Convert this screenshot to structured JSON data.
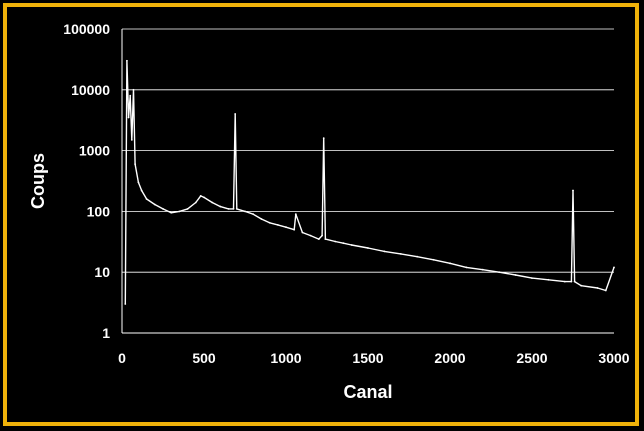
{
  "chart_data": {
    "type": "line",
    "xlabel": "Canal",
    "ylabel": "Coups",
    "xlim": [
      0,
      3000
    ],
    "ylim": [
      1,
      100000
    ],
    "yscale": "log",
    "xticks": [
      "0",
      "500",
      "1000",
      "1500",
      "2000",
      "2500",
      "3000"
    ],
    "yticks": [
      "1",
      "10",
      "100",
      "1000",
      "10000",
      "100000"
    ],
    "grid": "horizontal",
    "legend": "none",
    "series": [
      {
        "values_description": "gamma spectrum",
        "x": [
          20,
          30,
          40,
          50,
          60,
          70,
          80,
          100,
          120,
          150,
          200,
          250,
          300,
          350,
          400,
          450,
          480,
          500,
          550,
          600,
          650,
          680,
          690,
          700,
          750,
          800,
          850,
          900,
          950,
          1000,
          1050,
          1060,
          1100,
          1150,
          1200,
          1220,
          1230,
          1240,
          1300,
          1350,
          1400,
          1500,
          1600,
          1700,
          1800,
          1900,
          2000,
          2100,
          2200,
          2300,
          2400,
          2500,
          2600,
          2700,
          2740,
          2750,
          2760,
          2800,
          2900,
          2950,
          3000
        ],
        "y": [
          3,
          30000,
          3500,
          8000,
          1500,
          10000,
          600,
          300,
          220,
          160,
          130,
          110,
          95,
          100,
          110,
          140,
          180,
          170,
          140,
          120,
          110,
          110,
          4000,
          110,
          100,
          90,
          75,
          65,
          60,
          55,
          50,
          90,
          45,
          40,
          35,
          40,
          1600,
          35,
          32,
          30,
          28,
          25,
          22,
          20,
          18,
          16,
          14,
          12,
          11,
          10,
          9,
          8,
          7.5,
          7,
          7,
          220,
          7,
          6,
          5.5,
          5,
          12
        ]
      }
    ],
    "colors": {
      "frame": "#f0b20a",
      "background": "#000000",
      "line": "#ffffff",
      "grid": "#ffffff"
    }
  }
}
